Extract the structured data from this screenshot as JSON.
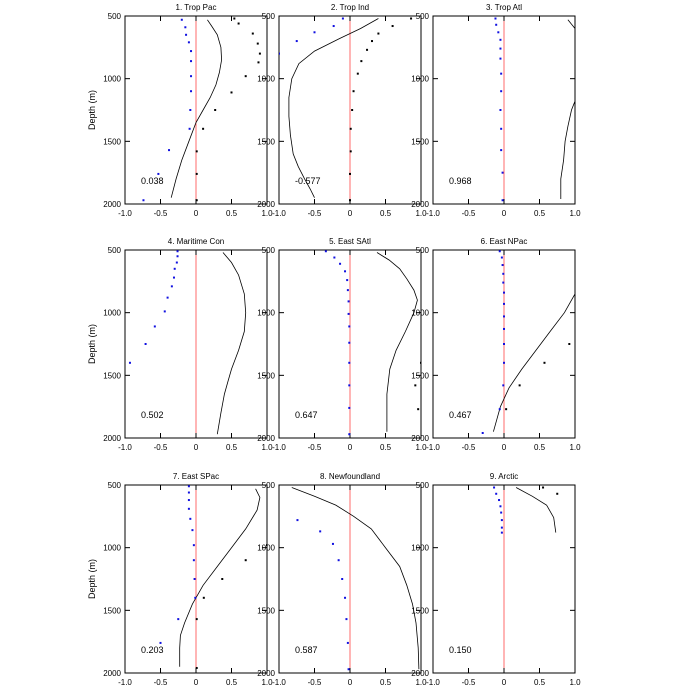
{
  "figure": {
    "ylabel": "Depth (m)"
  },
  "chart_data": [
    {
      "type": "line",
      "title": "1. Trop Pac",
      "ylabel": "Depth (m)",
      "xlim": [
        -1,
        1
      ],
      "ylim": [
        2000,
        500
      ],
      "xticks": [
        "-1.0",
        "-0.5",
        "0",
        "0.5",
        "1.0"
      ],
      "yticks": [
        "500",
        "1000",
        "1500",
        "2000"
      ],
      "annotation": "0.038",
      "line": {
        "x": [
          0.16,
          0.22,
          0.3,
          0.35,
          0.36,
          0.33,
          0.28,
          0.2,
          0.1,
          0.0,
          -0.1,
          -0.2,
          -0.28,
          -0.35
        ],
        "y": [
          530,
          580,
          650,
          750,
          850,
          950,
          1050,
          1150,
          1250,
          1350,
          1500,
          1650,
          1800,
          1950
        ]
      },
      "blue_points": {
        "x": [
          -0.2,
          -0.15,
          -0.14,
          -0.1,
          -0.07,
          -0.07,
          -0.07,
          -0.07,
          -0.08,
          -0.09,
          -0.38,
          -0.53,
          -0.74
        ],
        "y": [
          530,
          590,
          650,
          710,
          780,
          860,
          980,
          1100,
          1250,
          1400,
          1570,
          1760,
          1970
        ]
      },
      "black_points": {
        "x": [
          0.54,
          0.6,
          0.8,
          0.87,
          0.9,
          0.88,
          0.7,
          0.5,
          0.27,
          0.1,
          0.01,
          0.01,
          0.01
        ],
        "y": [
          520,
          560,
          640,
          720,
          800,
          870,
          980,
          1110,
          1250,
          1400,
          1580,
          1760,
          1970
        ]
      }
    },
    {
      "type": "line",
      "title": "2. Trop Ind",
      "xlim": [
        -1,
        1
      ],
      "ylim": [
        2000,
        500
      ],
      "xticks": [
        "-1.0",
        "-0.5",
        "0",
        "0.5",
        "1.0"
      ],
      "yticks": [
        "500",
        "1000",
        "1500",
        "2000"
      ],
      "annotation": "-0.577",
      "line": {
        "x": [
          0.4,
          0.15,
          -0.15,
          -0.5,
          -0.72,
          -0.82,
          -0.86,
          -0.86,
          -0.84,
          -0.8,
          -0.73,
          -0.64,
          -0.56,
          -0.5
        ],
        "y": [
          520,
          600,
          680,
          780,
          880,
          1000,
          1150,
          1300,
          1450,
          1600,
          1700,
          1800,
          1880,
          1950
        ]
      },
      "blue_points": {
        "x": [
          -0.1,
          -0.23,
          -0.5,
          -0.75,
          -1.0
        ],
        "y": [
          520,
          580,
          630,
          700,
          800
        ]
      },
      "black_points": {
        "x": [
          0.86,
          0.6,
          0.4,
          0.31,
          0.24,
          0.16,
          0.11,
          0.05,
          0.03,
          0.01,
          0.01,
          0.0,
          0.0
        ],
        "y": [
          520,
          580,
          640,
          700,
          770,
          860,
          960,
          1100,
          1250,
          1400,
          1580,
          1760,
          1970
        ]
      }
    },
    {
      "type": "line",
      "title": "3. Trop Atl",
      "xlim": [
        -1,
        1
      ],
      "ylim": [
        2000,
        500
      ],
      "xticks": [
        "-1.0",
        "-0.5",
        "0",
        "0.5",
        "1.0"
      ],
      "yticks": [
        "500",
        "1000",
        "1500",
        "2000"
      ],
      "annotation": "0.968",
      "line_segments": [
        {
          "x": [
            0.9,
            1.0
          ],
          "y": [
            530,
            600
          ]
        },
        {
          "x": [
            1.0,
            0.95,
            0.9,
            0.86,
            0.84,
            0.8,
            0.8
          ],
          "y": [
            1180,
            1250,
            1380,
            1500,
            1650,
            1800,
            1960
          ]
        }
      ],
      "blue_points": {
        "x": [
          -0.12,
          -0.11,
          -0.08,
          -0.05,
          -0.05,
          -0.05,
          -0.04,
          -0.04,
          -0.05,
          -0.04,
          -0.04,
          -0.02,
          -0.02
        ],
        "y": [
          520,
          570,
          630,
          690,
          760,
          840,
          960,
          1100,
          1250,
          1400,
          1570,
          1750,
          1970
        ]
      },
      "black_points": {
        "x": [],
        "y": []
      }
    },
    {
      "type": "line",
      "title": "4. Maritime Con",
      "ylabel": "Depth (m)",
      "xlim": [
        -1,
        1
      ],
      "ylim": [
        2000,
        500
      ],
      "xticks": [
        "-1.0",
        "-0.5",
        "0",
        "0.5",
        "1.0"
      ],
      "yticks": [
        "500",
        "1000",
        "1500",
        "2000"
      ],
      "annotation": "0.502",
      "line": {
        "x": [
          0.38,
          0.5,
          0.6,
          0.68,
          0.7,
          0.68,
          0.6,
          0.5,
          0.45,
          0.4,
          0.35,
          0.3
        ],
        "y": [
          520,
          600,
          700,
          850,
          1000,
          1150,
          1300,
          1450,
          1550,
          1650,
          1800,
          1970
        ]
      },
      "blue_points": {
        "x": [
          -0.26,
          -0.26,
          -0.27,
          -0.3,
          -0.31,
          -0.34,
          -0.4,
          -0.44,
          -0.58,
          -0.71,
          -0.93
        ],
        "y": [
          510,
          550,
          600,
          650,
          720,
          790,
          880,
          990,
          1110,
          1250,
          1400
        ]
      },
      "black_points": {
        "x": [],
        "y": []
      }
    },
    {
      "type": "line",
      "title": "5. East SAtl",
      "xlim": [
        -1,
        1
      ],
      "ylim": [
        2000,
        500
      ],
      "xticks": [
        "-1.0",
        "-0.5",
        "0",
        "0.5",
        "1.0"
      ],
      "yticks": [
        "500",
        "1000",
        "1500",
        "2000"
      ],
      "annotation": "0.647",
      "line": {
        "x": [
          0.38,
          0.55,
          0.7,
          0.8,
          0.9,
          0.95,
          0.9,
          0.78,
          0.65,
          0.56,
          0.52,
          0.52
        ],
        "y": [
          520,
          580,
          650,
          730,
          820,
          900,
          1000,
          1150,
          1300,
          1450,
          1650,
          1950
        ]
      },
      "blue_points": {
        "x": [
          -0.34,
          -0.22,
          -0.14,
          -0.07,
          -0.04,
          -0.03,
          -0.02,
          -0.02,
          -0.01,
          -0.01,
          -0.01,
          -0.01,
          -0.01,
          -0.01
        ],
        "y": [
          510,
          560,
          610,
          670,
          740,
          820,
          910,
          1010,
          1110,
          1240,
          1400,
          1580,
          1760,
          1970
        ]
      },
      "black_points": {
        "x": [
          1.0,
          0.92,
          0.96
        ],
        "y": [
          1400,
          1580,
          1770
        ]
      }
    },
    {
      "type": "line",
      "title": "6. East NPac",
      "xlim": [
        -1,
        1
      ],
      "ylim": [
        2000,
        500
      ],
      "xticks": [
        "-1.0",
        "-0.5",
        "0",
        "0.5",
        "1.0"
      ],
      "yticks": [
        "500",
        "1000",
        "1500",
        "2000"
      ],
      "annotation": "0.467",
      "line": {
        "x": [
          1.0,
          0.85,
          0.65,
          0.45,
          0.25,
          0.07,
          -0.05,
          -0.15
        ],
        "y": [
          850,
          1000,
          1150,
          1300,
          1450,
          1600,
          1750,
          1950
        ]
      },
      "blue_points": {
        "x": [
          -0.06,
          -0.03,
          -0.02,
          -0.01,
          -0.01,
          0.0,
          0.0,
          0.0,
          0.0,
          0.0,
          0.0,
          -0.01,
          -0.06,
          -0.3
        ],
        "y": [
          510,
          560,
          620,
          690,
          760,
          840,
          930,
          1030,
          1130,
          1250,
          1400,
          1580,
          1770,
          1960
        ]
      },
      "black_points": {
        "x": [
          0.92,
          0.57,
          0.22,
          0.03
        ],
        "y": [
          1250,
          1400,
          1580,
          1770
        ]
      }
    },
    {
      "type": "line",
      "title": "7. East SPac",
      "ylabel": "Depth (m)",
      "xlim": [
        -1,
        1
      ],
      "ylim": [
        2000,
        500
      ],
      "xticks": [
        "-1.0",
        "-0.5",
        "0",
        "0.5",
        "1.0"
      ],
      "yticks": [
        "500",
        "1000",
        "1500",
        "2000"
      ],
      "annotation": "0.203",
      "line": {
        "x": [
          0.84,
          0.9,
          0.86,
          0.7,
          0.5,
          0.3,
          0.1,
          -0.05,
          -0.16,
          -0.22,
          -0.23,
          -0.23
        ],
        "y": [
          530,
          600,
          700,
          850,
          1000,
          1150,
          1300,
          1450,
          1600,
          1700,
          1800,
          1950
        ]
      },
      "blue_points": {
        "x": [
          -0.1,
          -0.1,
          -0.1,
          -0.1,
          -0.08,
          -0.05,
          -0.03,
          -0.03,
          -0.02,
          -0.01,
          -0.25,
          -0.5
        ],
        "y": [
          510,
          560,
          620,
          690,
          770,
          860,
          980,
          1100,
          1250,
          1400,
          1570,
          1760
        ]
      },
      "black_points": {
        "x": [
          1.0,
          0.7,
          0.37,
          0.11,
          0.01,
          0.01
        ],
        "y": [
          980,
          1100,
          1250,
          1400,
          1570,
          1960
        ]
      }
    },
    {
      "type": "line",
      "title": "8. Newfoundland",
      "xlim": [
        -1,
        1
      ],
      "ylim": [
        2000,
        500
      ],
      "xticks": [
        "-1.0",
        "-0.5",
        "0",
        "0.5",
        "1.0"
      ],
      "yticks": [
        "500",
        "1000",
        "1500",
        "2000"
      ],
      "annotation": "0.587",
      "line": {
        "x": [
          -0.82,
          -0.5,
          -0.2,
          0.05,
          0.3,
          0.5,
          0.7,
          0.8,
          0.88,
          0.93,
          0.96,
          0.97
        ],
        "y": [
          520,
          590,
          660,
          750,
          850,
          1000,
          1150,
          1300,
          1450,
          1600,
          1800,
          1970
        ]
      },
      "blue_points": {
        "x": [
          -0.74,
          -0.42,
          -0.24,
          -0.16,
          -0.11,
          -0.07,
          -0.05,
          -0.03,
          -0.02
        ],
        "y": [
          780,
          870,
          970,
          1100,
          1250,
          1400,
          1570,
          1760,
          1970
        ]
      },
      "black_points": {
        "x": [],
        "y": []
      }
    },
    {
      "type": "line",
      "title": "9. Arctic",
      "xlim": [
        -1,
        1
      ],
      "ylim": [
        2000,
        500
      ],
      "xticks": [
        "-1.0",
        "-0.5",
        "0",
        "0.5",
        "1.0"
      ],
      "yticks": [
        "500",
        "1000",
        "1500",
        "2000"
      ],
      "annotation": "0.150",
      "line": {
        "x": [
          0.17,
          0.4,
          0.6,
          0.7,
          0.73
        ],
        "y": [
          520,
          590,
          660,
          760,
          880
        ]
      },
      "blue_points": {
        "x": [
          -0.14,
          -0.11,
          -0.07,
          -0.05,
          -0.04,
          -0.03,
          -0.03,
          -0.03
        ],
        "y": [
          520,
          570,
          620,
          670,
          720,
          780,
          840,
          880
        ]
      },
      "black_points": {
        "x": [
          0.55,
          0.75
        ],
        "y": [
          520,
          570
        ]
      }
    }
  ]
}
